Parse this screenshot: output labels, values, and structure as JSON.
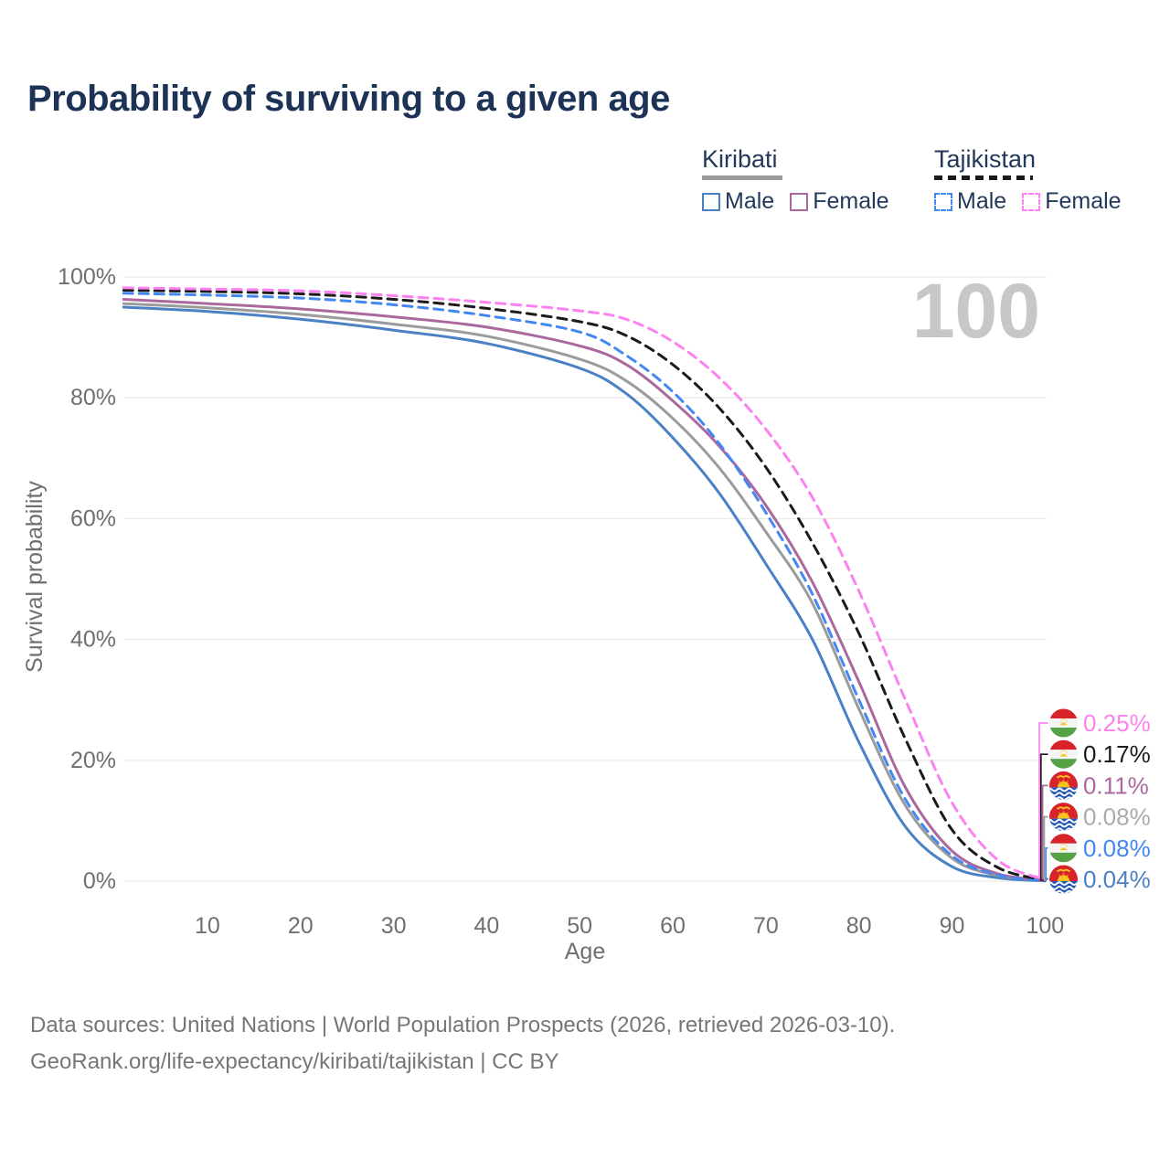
{
  "title": "Probability of surviving to a given age",
  "watermark": "100",
  "legend": {
    "groups": [
      {
        "name": "Kiribati",
        "style": "solid",
        "line_color": "#9b9b9b",
        "items": [
          {
            "label": "Male",
            "color": "#4a80c4"
          },
          {
            "label": "Female",
            "color": "#aa689f"
          }
        ]
      },
      {
        "name": "Tajikistan",
        "style": "dashed",
        "line_color": "#1b1b1b",
        "items": [
          {
            "label": "Male",
            "color": "#4387f2"
          },
          {
            "label": "Female",
            "color": "#fc82ef"
          }
        ]
      }
    ]
  },
  "chart_data": {
    "type": "line",
    "title": "Probability of surviving to a given age",
    "xlabel": "Age",
    "ylabel": "Survival probability",
    "xlim": [
      1,
      100
    ],
    "ylim": [
      0,
      100
    ],
    "grid": "horizontal-only",
    "legend_position": "top-right",
    "x_ticks": [
      10,
      20,
      30,
      40,
      50,
      60,
      70,
      80,
      90,
      100
    ],
    "y_ticks": [
      {
        "label": "0%",
        "value": 0
      },
      {
        "label": "20%",
        "value": 20
      },
      {
        "label": "40%",
        "value": 40
      },
      {
        "label": "60%",
        "value": 60
      },
      {
        "label": "80%",
        "value": 80
      },
      {
        "label": "100%",
        "value": 100
      }
    ],
    "x": [
      1,
      10,
      20,
      30,
      40,
      50,
      55,
      60,
      65,
      70,
      75,
      80,
      85,
      90,
      95,
      100
    ],
    "series": [
      {
        "name": "Tajikistan Female",
        "country": "Tajikistan",
        "sex": "Female",
        "color": "#fc82ef",
        "dashed": true,
        "flag": "tajikistan",
        "end_label": "0.25%",
        "values": [
          98.2,
          98.0,
          97.7,
          96.9,
          95.8,
          94.4,
          93.0,
          89.3,
          83.3,
          74.8,
          63.5,
          48.0,
          30.0,
          13.0,
          3.4,
          0.25
        ]
      },
      {
        "name": "Tajikistan Both sexes",
        "country": "Tajikistan",
        "sex": "Both",
        "color": "#1b1b1b",
        "dashed": true,
        "flag": "tajikistan",
        "end_label": "0.17%",
        "values": [
          97.8,
          97.6,
          97.2,
          96.3,
          94.8,
          92.6,
          90.3,
          85.5,
          78.3,
          68.5,
          56.0,
          41.0,
          23.5,
          8.5,
          2.2,
          0.17
        ]
      },
      {
        "name": "Kiribati Female",
        "country": "Kiribati",
        "sex": "Female",
        "color": "#aa689f",
        "dashed": false,
        "flag": "kiribati",
        "end_label": "0.11%",
        "values": [
          96.3,
          95.6,
          94.7,
          93.4,
          91.7,
          88.6,
          85.5,
          79.5,
          72.0,
          62.2,
          49.5,
          33.0,
          15.5,
          5.0,
          1.2,
          0.11
        ]
      },
      {
        "name": "Kiribati Both sexes",
        "country": "Kiribati",
        "sex": "Both",
        "color": "#9b9b9b",
        "dashed": false,
        "flag": "kiribati",
        "end_label": "0.08%",
        "label_color": "#ababab",
        "values": [
          95.6,
          94.9,
          93.8,
          92.2,
          90.2,
          86.4,
          82.8,
          76.6,
          68.4,
          57.8,
          46.0,
          28.5,
          12.5,
          3.8,
          0.9,
          0.08
        ]
      },
      {
        "name": "Tajikistan Male",
        "country": "Tajikistan",
        "sex": "Male",
        "color": "#4387f2",
        "dashed": true,
        "flag": "tajikistan",
        "end_label": "0.08%",
        "values": [
          97.3,
          97.0,
          96.5,
          95.4,
          93.6,
          90.9,
          87.0,
          81.0,
          72.4,
          61.0,
          47.5,
          30.0,
          13.5,
          4.2,
          1.0,
          0.08
        ]
      },
      {
        "name": "Kiribati Male",
        "country": "Kiribati",
        "sex": "Male",
        "color": "#4a80c4",
        "dashed": false,
        "flag": "kiribati",
        "end_label": "0.04%",
        "values": [
          95.0,
          94.3,
          93.0,
          91.2,
          89.0,
          84.9,
          80.7,
          73.4,
          64.2,
          52.5,
          40.0,
          23.0,
          9.0,
          2.4,
          0.55,
          0.04
        ]
      }
    ]
  },
  "footer": {
    "line1": "Data sources: United Nations | World Population Prospects (2026, retrieved 2026-03-10).",
    "line2": "GeoRank.org/life-expectancy/kiribati/tajikistan | CC BY"
  }
}
